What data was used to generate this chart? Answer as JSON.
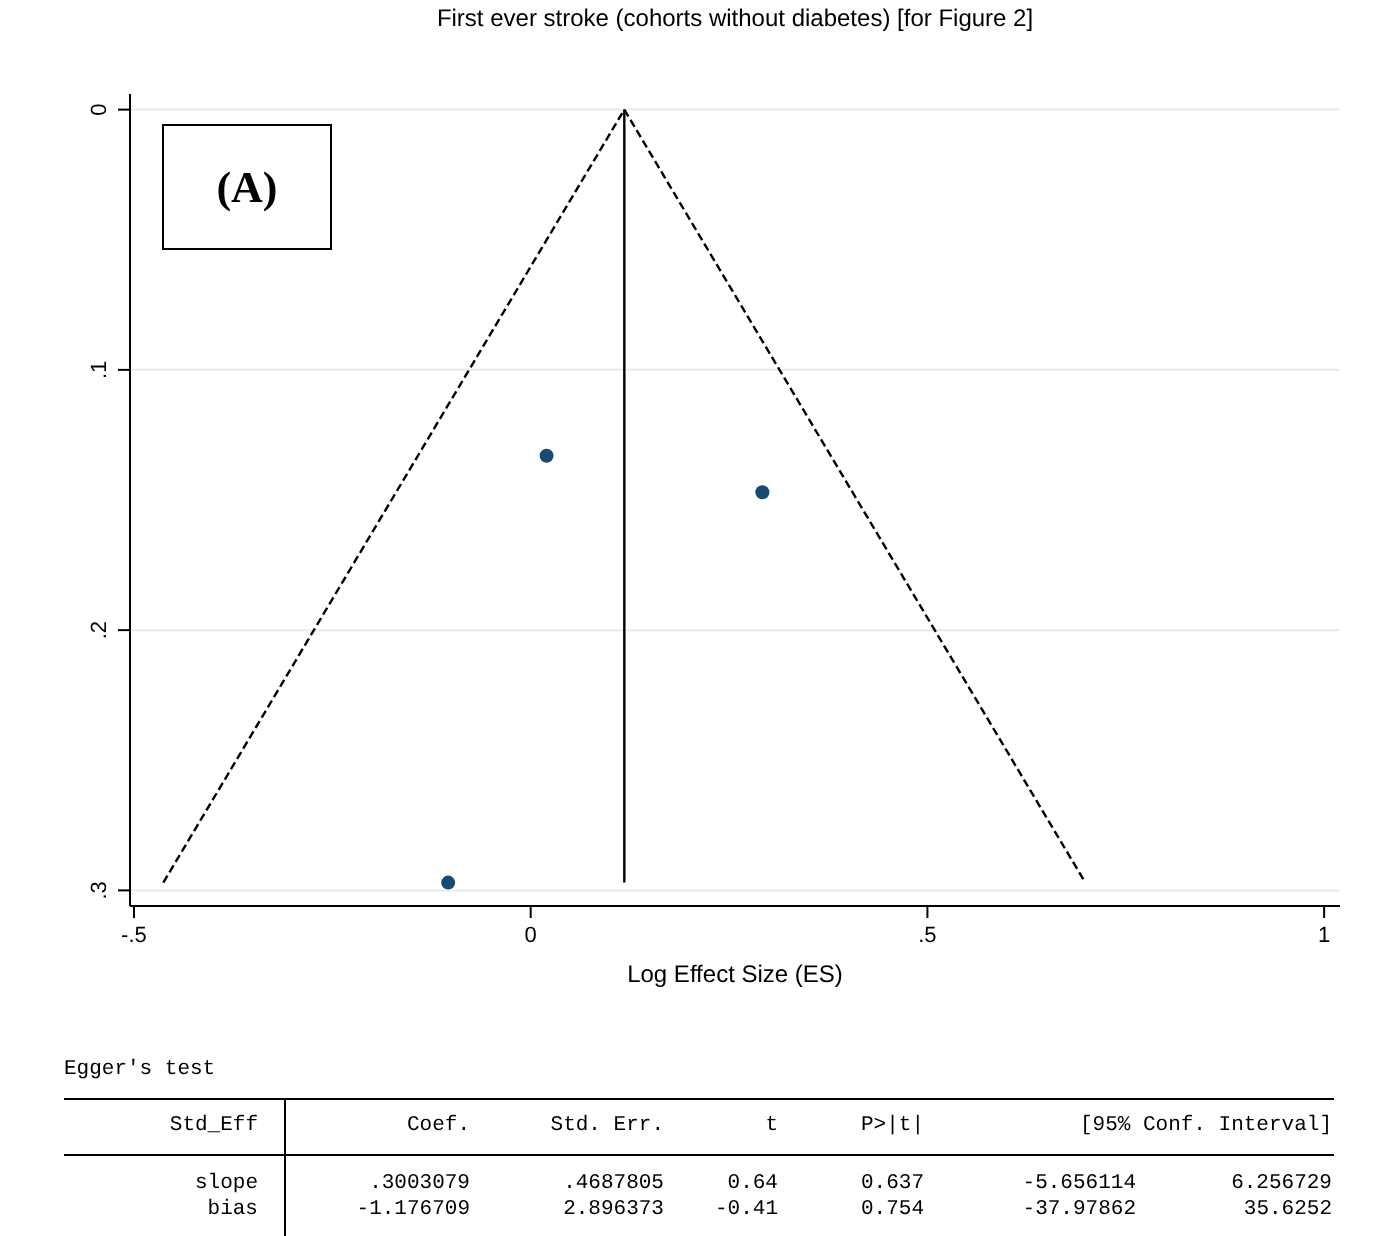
{
  "chart_data": {
    "type": "scatter",
    "title": "First ever stroke (cohorts without diabetes) [for Figure 2]",
    "xlabel": "Log Effect Size (ES)",
    "xlim": [
      -0.505,
      1.02
    ],
    "ylim": [
      0.306,
      -0.006
    ],
    "xticks": [
      {
        "value": -0.5,
        "label": "-.5"
      },
      0,
      {
        "value": 0.5,
        "label": ".5"
      },
      1
    ],
    "yticks": [
      0,
      {
        "value": 0.1,
        "label": ".1"
      },
      {
        "value": 0.2,
        "label": ".2"
      },
      {
        "value": 0.3,
        "label": ".3"
      }
    ],
    "grid": "y",
    "legend": false,
    "marker": "circle",
    "series": [
      {
        "type": "scatter",
        "color": "#1a4a72",
        "x": [
          0.02,
          0.292,
          -0.104
        ],
        "values": [
          0.133,
          0.147,
          0.297
        ]
      },
      {
        "type": "line",
        "color": "#000000",
        "line_style": "dashed",
        "marker": "none",
        "x": [
          -0.463,
          0.118,
          0.699
        ],
        "values": [
          0.297,
          0,
          0.297
        ]
      },
      {
        "type": "line",
        "color": "#000000",
        "line_style": "solid",
        "marker": "none",
        "x": [
          0.118,
          0.118
        ],
        "values": [
          0,
          0.297
        ]
      }
    ],
    "annotations": [
      "(A)",
      "Egger's test",
      "Std_Eff",
      "Coef.",
      "Std. Err.",
      "t",
      "P>|t|",
      "[95% Conf. Interval]",
      "slope",
      ".3003079",
      ".4687805",
      "0.64",
      "0.637",
      "-5.656114",
      "6.256729",
      "bias",
      "-1.176709",
      "2.896373",
      "-0.41",
      "0.754",
      "-37.97862",
      "35.6252"
    ]
  }
}
